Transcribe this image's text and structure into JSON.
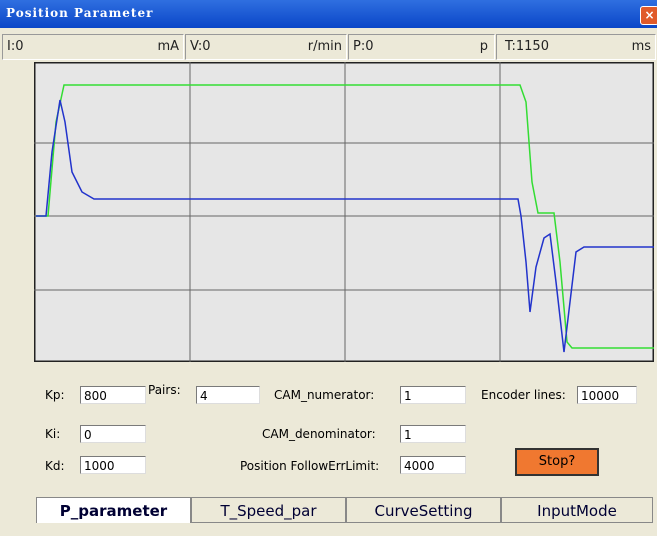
{
  "window": {
    "title": "Position Parameter"
  },
  "status": [
    {
      "text": "I:0",
      "unit": "mA"
    },
    {
      "text": "V:0",
      "unit": "r/min"
    },
    {
      "text": "P:0",
      "unit": "p"
    },
    {
      "text": "T:1150",
      "unit": "ms"
    }
  ],
  "fields": {
    "kp": {
      "label": "Kp:",
      "value": "800"
    },
    "ki": {
      "label": "Ki:",
      "value": "0"
    },
    "kd": {
      "label": "Kd:",
      "value": "1000"
    },
    "pairs": {
      "label": "Pairs:",
      "value": "4"
    },
    "cam_numerator": {
      "label": "CAM_numerator:",
      "value": "1"
    },
    "cam_denominator": {
      "label": "CAM_denominator:",
      "value": "1"
    },
    "follow_err_limit": {
      "label": "Position FollowErrLimit:",
      "value": "4000"
    },
    "encoder_lines": {
      "label": "Encoder lines:",
      "value": "10000"
    }
  },
  "stop_button": "Stop?",
  "tabs": [
    "P_parameter",
    "T_Speed_par",
    "CurveSetting",
    "InputMode"
  ]
}
